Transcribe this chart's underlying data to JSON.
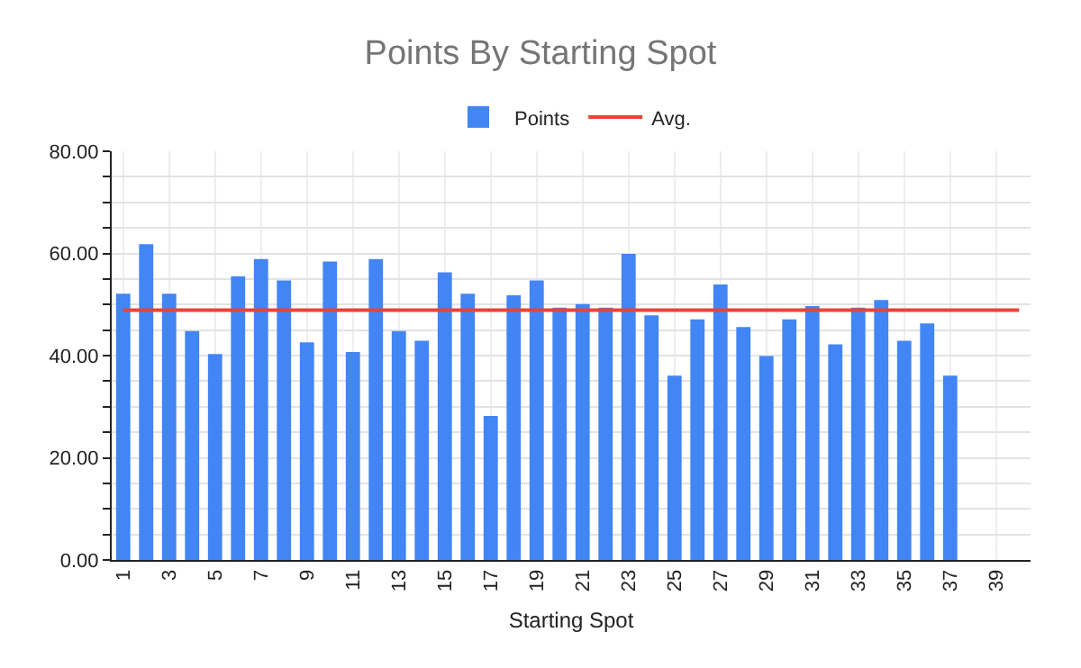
{
  "chart_data": {
    "type": "bar",
    "title": "Points By Starting Spot",
    "xlabel": "Starting Spot",
    "categories": [
      "1",
      null,
      "3",
      null,
      "5",
      null,
      "7",
      null,
      "9",
      null,
      "11",
      null,
      "13",
      null,
      "15",
      null,
      "17",
      null,
      "19",
      null,
      "21",
      null,
      "23",
      null,
      "25",
      null,
      "27",
      null,
      "29",
      null,
      "31",
      null,
      "33",
      null,
      "35",
      null,
      "37",
      null,
      "39",
      null
    ],
    "series": [
      {
        "name": "Points",
        "color": "#4285f4",
        "values": [
          52.1,
          61.8,
          52.1,
          44.8,
          40.3,
          55.5,
          58.9,
          54.7,
          42.6,
          58.4,
          40.7,
          58.9,
          44.8,
          42.9,
          56.3,
          52.1,
          28.2,
          51.8,
          54.7,
          49.4,
          50.1,
          49.4,
          59.9,
          47.9,
          36.1,
          47.1,
          53.9,
          45.6,
          39.9,
          47.1,
          49.7,
          42.2,
          49.4,
          50.9,
          42.9,
          46.3,
          36.1,
          null,
          null,
          null
        ]
      },
      {
        "name": "Avg.",
        "type": "line",
        "color": "#ea4335",
        "values": [
          48.9,
          48.9,
          48.9,
          48.9,
          48.9,
          48.9,
          48.9,
          48.9,
          48.9,
          48.9,
          48.9,
          48.9,
          48.9,
          48.9,
          48.9,
          48.9,
          48.9,
          48.9,
          48.9,
          48.9,
          48.9,
          48.9,
          48.9,
          48.9,
          48.9,
          48.9,
          48.9,
          48.9,
          48.9,
          48.9,
          48.9,
          48.9,
          48.9,
          48.9,
          48.9,
          48.9,
          48.9,
          48.9,
          48.9,
          48.9
        ]
      }
    ],
    "ylim": [
      0,
      80
    ],
    "yticks": [
      {
        "value": 0,
        "label": "0.00"
      },
      {
        "value": 5,
        "label": null
      },
      {
        "value": 10,
        "label": null
      },
      {
        "value": 15,
        "label": null
      },
      {
        "value": 20,
        "label": "20.00"
      },
      {
        "value": 25,
        "label": null
      },
      {
        "value": 30,
        "label": null
      },
      {
        "value": 35,
        "label": null
      },
      {
        "value": 40,
        "label": "40.00"
      },
      {
        "value": 45,
        "label": null
      },
      {
        "value": 50,
        "label": null
      },
      {
        "value": 55,
        "label": null
      },
      {
        "value": 60,
        "label": "60.00"
      },
      {
        "value": 65,
        "label": null
      },
      {
        "value": 70,
        "label": null
      },
      {
        "value": 75,
        "label": null
      },
      {
        "value": 80,
        "label": "80.00"
      }
    ],
    "grid": true,
    "legend": "top",
    "marker": "none",
    "line_style": "solid"
  }
}
